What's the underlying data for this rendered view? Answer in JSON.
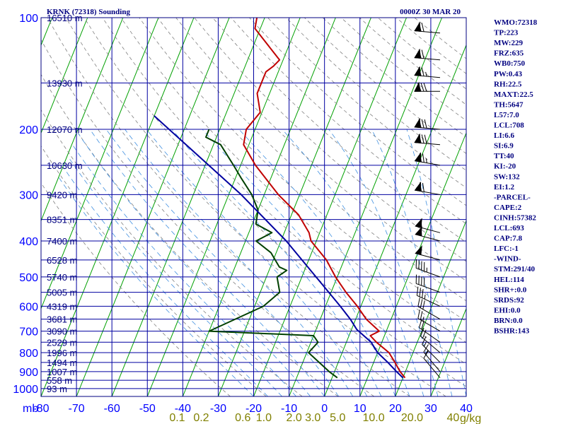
{
  "chart_data": {
    "type": "line",
    "title": "KRNK (72318) Sounding",
    "time": "0000Z 30 MAR 20",
    "pressure_unit_label": "mb",
    "pressure_ticks": [
      100,
      200,
      300,
      400,
      500,
      600,
      700,
      800,
      900,
      1000
    ],
    "temperature_ticks": [
      -80,
      -70,
      -60,
      -50,
      -40,
      -30,
      -20,
      -10,
      0,
      10,
      20,
      30,
      40
    ],
    "mixing_ratio_ticks": [
      "0.1",
      "0.2",
      "0.6",
      "1.0",
      "2.0",
      "3.0",
      "5.0",
      "10.0",
      "20.0",
      "40"
    ],
    "mixing_ratio_values": [
      0.1,
      0.2,
      0.6,
      1.0,
      2.0,
      3.0,
      5.0,
      10.0,
      20.0,
      40.0
    ],
    "mixing_ratio_unit": "g/kg",
    "heights": [
      {
        "p": 100,
        "label": "16510 m"
      },
      {
        "p": 150,
        "label": "13930 m"
      },
      {
        "p": 200,
        "label": "12070 m"
      },
      {
        "p": 250,
        "label": "10630 m"
      },
      {
        "p": 300,
        "label": "9420 m"
      },
      {
        "p": 350,
        "label": "8351 m"
      },
      {
        "p": 400,
        "label": "7400 m"
      },
      {
        "p": 450,
        "label": "6528 m"
      },
      {
        "p": 500,
        "label": "5740 m"
      },
      {
        "p": 550,
        "label": "5005 m"
      },
      {
        "p": 600,
        "label": "4319 m"
      },
      {
        "p": 650,
        "label": "3681 m"
      },
      {
        "p": 700,
        "label": "3090 m"
      },
      {
        "p": 750,
        "label": "2529 m"
      },
      {
        "p": 800,
        "label": "1996 m"
      },
      {
        "p": 850,
        "label": "1494 m"
      },
      {
        "p": 900,
        "label": "1007 m"
      },
      {
        "p": 950,
        "label": "558 m"
      },
      {
        "p": 1000,
        "label": "93 m"
      }
    ],
    "series": [
      {
        "name": "Temperature",
        "color": "#c00000",
        "points": [
          [
            100,
            -62.2
          ],
          [
            107,
            -61.5
          ],
          [
            130,
            -51.0
          ],
          [
            135,
            -52.0
          ],
          [
            140,
            -53.5
          ],
          [
            160,
            -53.5
          ],
          [
            180,
            -50.5
          ],
          [
            200,
            -52.5
          ],
          [
            220,
            -51.5
          ],
          [
            250,
            -45.8
          ],
          [
            300,
            -36.0
          ],
          [
            340,
            -28.0
          ],
          [
            380,
            -23.0
          ],
          [
            400,
            -21.5
          ],
          [
            450,
            -15.0
          ],
          [
            500,
            -10.5
          ],
          [
            550,
            -5.8
          ],
          [
            600,
            -1.0
          ],
          [
            650,
            3.0
          ],
          [
            700,
            8.0
          ],
          [
            720,
            6.0
          ],
          [
            750,
            8.5
          ],
          [
            800,
            13.2
          ],
          [
            850,
            16.0
          ],
          [
            900,
            18.5
          ],
          [
            935,
            20.6
          ]
        ]
      },
      {
        "name": "Dewpoint",
        "color": "#004000",
        "points": [
          [
            200,
            -63.0
          ],
          [
            210,
            -63.0
          ],
          [
            220,
            -58.0
          ],
          [
            250,
            -52.0
          ],
          [
            270,
            -48.5
          ],
          [
            300,
            -43.5
          ],
          [
            330,
            -40.0
          ],
          [
            360,
            -39.0
          ],
          [
            380,
            -33.5
          ],
          [
            400,
            -37.0
          ],
          [
            430,
            -31.5
          ],
          [
            470,
            -27.5
          ],
          [
            480,
            -25.0
          ],
          [
            500,
            -27.0
          ],
          [
            550,
            -24.5
          ],
          [
            600,
            -27.5
          ],
          [
            700,
            -40.0
          ],
          [
            720,
            -10.0
          ],
          [
            750,
            -8.0
          ],
          [
            800,
            -9.5
          ],
          [
            900,
            -1.5
          ],
          [
            935,
            1.5
          ]
        ]
      },
      {
        "name": "Parcel",
        "color": "#0000a0",
        "points": [
          [
            184,
            -80.0
          ],
          [
            300,
            -46.5
          ],
          [
            400,
            -28.5
          ],
          [
            500,
            -16.0
          ],
          [
            600,
            -5.8
          ],
          [
            650,
            -1.5
          ],
          [
            693,
            1.5
          ],
          [
            750,
            7.0
          ],
          [
            800,
            10.0
          ],
          [
            850,
            14.0
          ],
          [
            900,
            17.5
          ],
          [
            935,
            20.0
          ]
        ]
      }
    ],
    "winds": [
      {
        "p": 110,
        "dir": 275,
        "spd": 70
      },
      {
        "p": 130,
        "dir": 275,
        "spd": 70
      },
      {
        "p": 145,
        "dir": 275,
        "spd": 75
      },
      {
        "p": 158,
        "dir": 270,
        "spd": 80
      },
      {
        "p": 200,
        "dir": 275,
        "spd": 80
      },
      {
        "p": 220,
        "dir": 275,
        "spd": 80
      },
      {
        "p": 250,
        "dir": 280,
        "spd": 75
      },
      {
        "p": 300,
        "dir": 280,
        "spd": 70
      },
      {
        "p": 380,
        "dir": 285,
        "spd": 60
      },
      {
        "p": 400,
        "dir": 285,
        "spd": 55
      },
      {
        "p": 450,
        "dir": 285,
        "spd": 50
      },
      {
        "p": 500,
        "dir": 290,
        "spd": 45
      },
      {
        "p": 550,
        "dir": 290,
        "spd": 40
      },
      {
        "p": 600,
        "dir": 295,
        "spd": 35
      },
      {
        "p": 650,
        "dir": 300,
        "spd": 30
      },
      {
        "p": 700,
        "dir": 300,
        "spd": 25
      },
      {
        "p": 750,
        "dir": 305,
        "spd": 20
      },
      {
        "p": 800,
        "dir": 310,
        "spd": 20
      },
      {
        "p": 850,
        "dir": 315,
        "spd": 15
      },
      {
        "p": 900,
        "dir": 320,
        "spd": 15
      },
      {
        "p": 935,
        "dir": 320,
        "spd": 10
      }
    ]
  },
  "indices": [
    "WMO:72318",
    "TP:223",
    "MW:229",
    "FRZ:635",
    "WB0:750",
    "PW:0.43",
    "RH:22.5",
    "MAXT:22.5",
    "TH:5647",
    "L57:7.0",
    "LCL:708",
    "LI:6.6",
    "SI:6.9",
    "TT:40",
    "KI:-20",
    "SW:132",
    "EI:1.2",
    "-PARCEL-",
    "CAPE:2",
    "CINH:57382",
    "LCL:693",
    "CAP:7.8",
    "LFC:-1",
    "-WIND-",
    "STM:291/40",
    "HEL:114",
    "SHR+:0.0",
    "SRDS:92",
    "EHI:0.0",
    "BRN:0.0",
    "BSHR:143"
  ],
  "colors": {
    "frame": "#000080",
    "grid": "#0000a0",
    "isotherm": "#00a000",
    "dry_adiabat": "#808080",
    "moist_adiabat": "#4090e0",
    "temperature": "#c00000",
    "dewpoint": "#004000",
    "parcel": "#0000a0",
    "wind_barb": "#000000",
    "axis_labels": "#0000ff",
    "mixing_ratio_labels": "#808000"
  }
}
